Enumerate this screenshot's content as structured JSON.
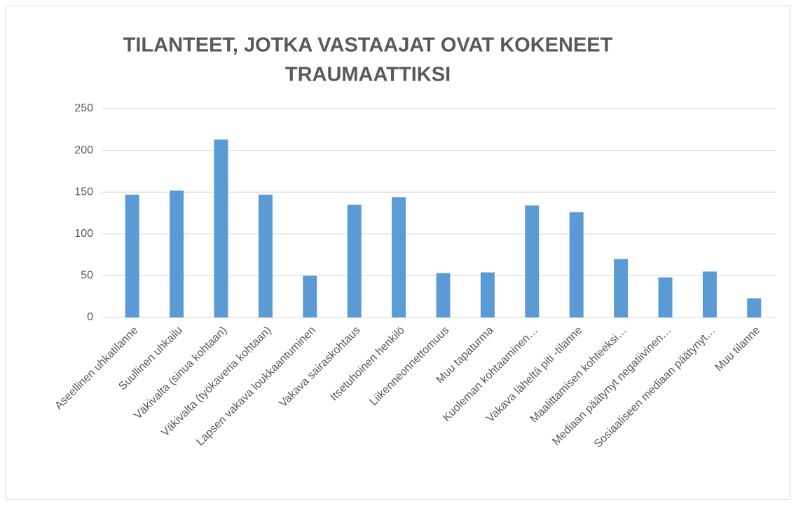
{
  "chart_data": {
    "type": "bar",
    "title": [
      "TILANTEET, JOTKA VASTAAJAT OVAT KOKENEET",
      "TRAUMAATTIKSI"
    ],
    "categories": [
      "Aseellinen uhkatilanne",
      "Suullinen uhkailu",
      "Väkivalta (sinua kohtaan)",
      "Väkivalta (työkaveria kohtaan)",
      "Lapsen vakava loukkaantuminen",
      "Vakava sairaskohtaus",
      "Itsetuhoinen henkilö",
      "Liikenneonnettomuus",
      "Muu tapaturma",
      "Kuoleman kohtaaminen…",
      "Vakava läheltä piti -tilanne",
      "Maalittamisen kohteeksi…",
      "Mediaan päätynyt negatiivinen…",
      "Sosiaaliseen mediaan päätynyt…",
      "Muu tilanne"
    ],
    "values": [
      147,
      152,
      213,
      147,
      50,
      135,
      144,
      53,
      54,
      134,
      126,
      70,
      48,
      55,
      23
    ],
    "color": "#5b9bd5",
    "ylim": [
      0,
      250
    ],
    "yticks": [
      0,
      50,
      100,
      150,
      200,
      250
    ],
    "grid": true
  }
}
